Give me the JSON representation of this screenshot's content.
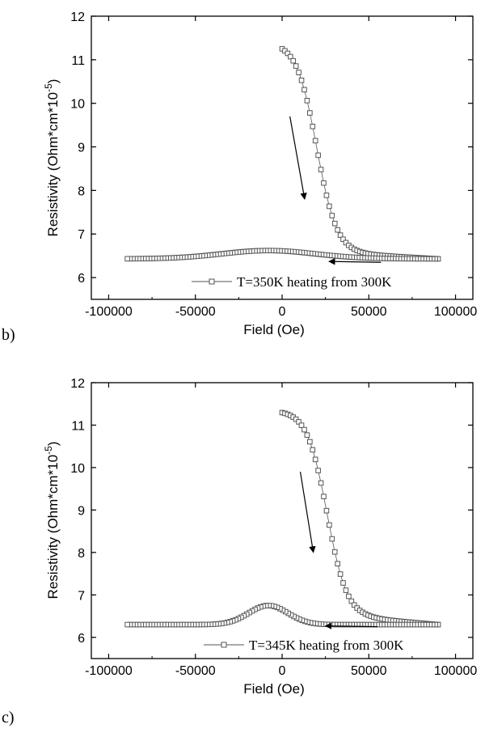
{
  "panel_labels": [
    "b)",
    "c)"
  ],
  "chart_data": [
    {
      "type": "scatter",
      "xlabel": "Field (Oe)",
      "ylabel_main": "Resistivity (Ohm*cm*10",
      "ylabel_sup": "-5",
      "ylabel_close": ")",
      "xlim": [
        -110000,
        110000
      ],
      "ylim": [
        5.5,
        12
      ],
      "xticks": [
        -100000,
        -50000,
        0,
        50000,
        100000
      ],
      "xtick_labels": [
        "-100000",
        "-50000",
        "0",
        "50000",
        "100000"
      ],
      "yticks": [
        6,
        7,
        8,
        9,
        10,
        11,
        12
      ],
      "ytick_labels": [
        "6",
        "7",
        "8",
        "9",
        "10",
        "11",
        "12"
      ],
      "legend_position": "bottom-right",
      "series": [
        {
          "name": "T=350K heating from 300K",
          "marker": "open-square",
          "color": "#555555",
          "curve": {
            "start": 11.4,
            "flat_base": 6.55,
            "drop_center": 20000,
            "drop_width": 5800,
            "tail_value": 6.43,
            "peak_value": 6.62,
            "peak_x": -8000,
            "peak_width": 38000,
            "x_start": 0,
            "x_max": 90000,
            "x_min": -90000,
            "x_step": 1600
          }
        }
      ],
      "annotations": [
        {
          "type": "arrow",
          "direction": "down",
          "x1": 4500,
          "y1": 9.7,
          "x2": 13000,
          "y2": 7.8
        },
        {
          "type": "arrow",
          "direction": "left",
          "x1": 57000,
          "y1": 6.35,
          "x2": 27000,
          "y2": 6.37
        }
      ]
    },
    {
      "type": "scatter",
      "xlabel": "Field (Oe)",
      "ylabel_main": "Resistivity (Ohm*cm*10",
      "ylabel_sup": "-5",
      "ylabel_close": ")",
      "xlim": [
        -110000,
        110000
      ],
      "ylim": [
        5.5,
        12
      ],
      "xticks": [
        -100000,
        -50000,
        0,
        50000,
        100000
      ],
      "xtick_labels": [
        "-100000",
        "-50000",
        "0",
        "50000",
        "100000"
      ],
      "yticks": [
        6,
        7,
        8,
        9,
        10,
        11,
        12
      ],
      "ytick_labels": [
        "6",
        "7",
        "8",
        "9",
        "10",
        "11",
        "12"
      ],
      "legend_position": "bottom-right",
      "series": [
        {
          "name": "T=345K heating from 300K",
          "marker": "open-square",
          "color": "#555555",
          "curve": {
            "start": 11.35,
            "flat_base": 6.45,
            "drop_center": 26000,
            "drop_width": 5800,
            "tail_value": 6.3,
            "peak_value": 6.75,
            "peak_x": -8000,
            "peak_width": 16000,
            "x_start": 0,
            "x_max": 90000,
            "x_min": -90000,
            "x_step": 1600
          }
        }
      ],
      "annotations": [
        {
          "type": "arrow",
          "direction": "down",
          "x1": 10500,
          "y1": 9.9,
          "x2": 18000,
          "y2": 8.0
        },
        {
          "type": "arrow",
          "direction": "left",
          "x1": 55000,
          "y1": 6.25,
          "x2": 25000,
          "y2": 6.27
        }
      ]
    }
  ]
}
